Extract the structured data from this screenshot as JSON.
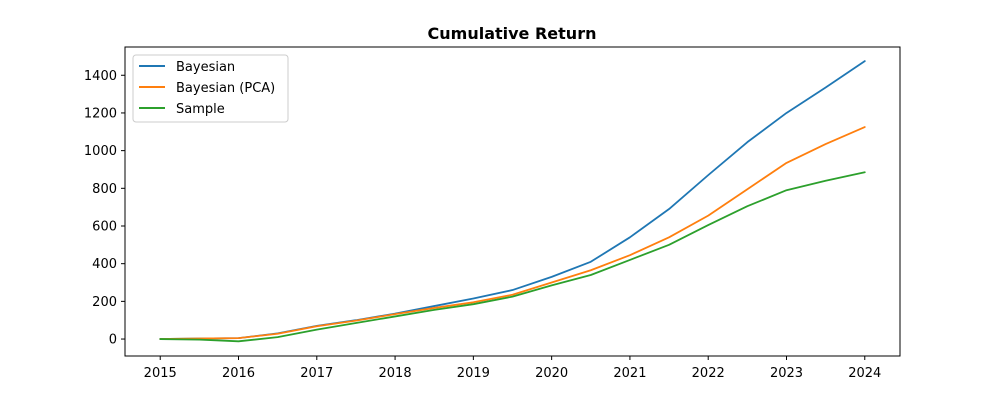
{
  "chart_data": {
    "type": "line",
    "title": "Cumulative Return",
    "xlabel": "",
    "ylabel": "",
    "xlim": [
      2014.55,
      2024.45
    ],
    "ylim": [
      -90,
      1550
    ],
    "xticks": [
      2015,
      2016,
      2017,
      2018,
      2019,
      2020,
      2021,
      2022,
      2023,
      2024
    ],
    "yticks": [
      0,
      200,
      400,
      600,
      800,
      1000,
      1200,
      1400
    ],
    "grid": false,
    "legend_position": "top-left",
    "series": [
      {
        "name": "Bayesian",
        "color": "#1f77b4",
        "x": [
          2015,
          2015.5,
          2016,
          2016.5,
          2017,
          2017.5,
          2018,
          2018.5,
          2019,
          2019.5,
          2020,
          2020.5,
          2021,
          2021.5,
          2022,
          2022.5,
          2023,
          2023.5,
          2024
        ],
        "y": [
          0,
          3,
          5,
          30,
          70,
          100,
          135,
          175,
          215,
          260,
          330,
          410,
          540,
          690,
          870,
          1045,
          1200,
          1335,
          1475
        ]
      },
      {
        "name": "Bayesian (PCA)",
        "color": "#ff7f0e",
        "x": [
          2015,
          2015.5,
          2016,
          2016.5,
          2017,
          2017.5,
          2018,
          2018.5,
          2019,
          2019.5,
          2020,
          2020.5,
          2021,
          2021.5,
          2022,
          2022.5,
          2023,
          2023.5,
          2024
        ],
        "y": [
          0,
          3,
          5,
          28,
          68,
          98,
          132,
          165,
          195,
          235,
          300,
          365,
          445,
          540,
          655,
          795,
          935,
          1035,
          1125
        ]
      },
      {
        "name": "Sample",
        "color": "#2ca02c",
        "x": [
          2015,
          2015.5,
          2016,
          2016.5,
          2017,
          2017.5,
          2018,
          2018.5,
          2019,
          2019.5,
          2020,
          2020.5,
          2021,
          2021.5,
          2022,
          2022.5,
          2023,
          2023.5,
          2024
        ],
        "y": [
          0,
          -3,
          -12,
          10,
          50,
          85,
          120,
          155,
          185,
          225,
          285,
          340,
          420,
          500,
          605,
          705,
          790,
          840,
          885
        ]
      }
    ]
  }
}
